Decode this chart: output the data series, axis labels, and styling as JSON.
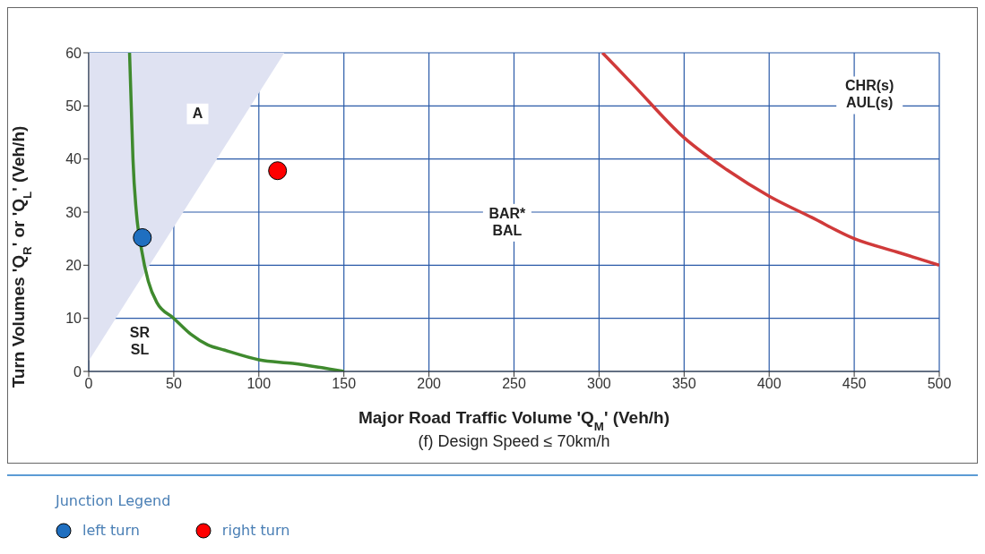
{
  "chart_data": {
    "type": "line",
    "xlabel": "Major Road Traffic Volume 'Q$_{M}$' (Veh/h)",
    "subtitle": "(f) Design Speed ≤ 70km/h",
    "ylabel": "Turn Volumes 'Q$_{R}$' or 'Q$_{L}$' (Veh/h)",
    "legend_title": "Junction Legend",
    "xlim": [
      0,
      500
    ],
    "xticks": [
      0,
      50,
      100,
      150,
      200,
      250,
      300,
      350,
      400,
      450,
      500
    ],
    "ylim": [
      0,
      60
    ],
    "yticks": [
      0,
      10,
      20,
      30,
      40,
      50,
      60
    ],
    "grid": true,
    "legend": "bottom left",
    "series": [
      {
        "type": "area",
        "color": "#dfe2f2",
        "x": [
          0,
          115
        ],
        "values": [
          2,
          60
        ]
      },
      {
        "color": "#3f8a2e",
        "x": [
          24,
          25,
          26,
          28,
          31,
          35,
          40,
          50,
          60,
          70,
          80,
          100,
          120,
          135,
          150
        ],
        "values": [
          60,
          50,
          40,
          30,
          23,
          17,
          13,
          10,
          7,
          5,
          4,
          2.2,
          1.5,
          0.8,
          0
        ]
      },
      {
        "color": "#d03a3a",
        "x": [
          302,
          320,
          350,
          375,
          400,
          425,
          450,
          475,
          500
        ],
        "values": [
          60,
          54,
          44,
          38,
          33,
          29,
          25,
          22.5,
          20
        ]
      },
      {
        "type": "scatter",
        "name": "left turn",
        "color": "#1f6fc0",
        "marker": "circle",
        "x": [
          31.5
        ],
        "values": [
          25.2
        ]
      },
      {
        "type": "scatter",
        "name": "right turn",
        "color": "#ff0000",
        "marker": "circle",
        "x": [
          111
        ],
        "values": [
          37.8
        ]
      }
    ],
    "annotations": [
      "A",
      "SR\nSL",
      "BAR*\nBAL",
      "CHR(s)\nAUL(s)"
    ]
  }
}
